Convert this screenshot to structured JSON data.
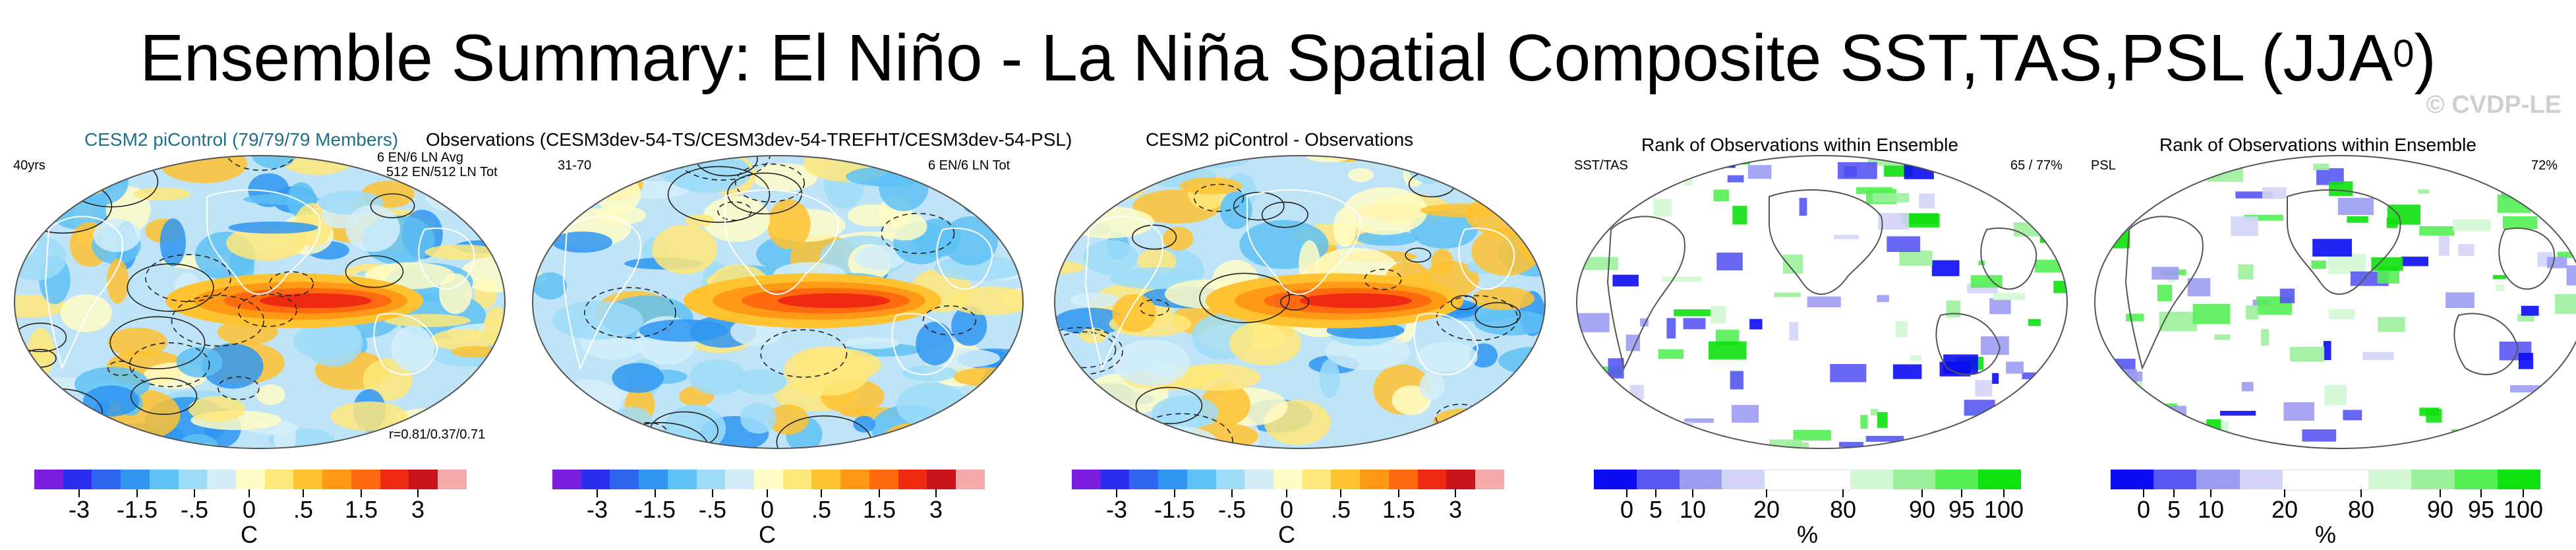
{
  "title": "Ensemble Summary: El Niño - La Niña Spatial Composite SST,TAS,PSL (JJA",
  "title_superscript": "0",
  "title_close": ")",
  "watermark": "© CVDP-LE",
  "panels": [
    {
      "top_left": "CESM2 piControl (79/79/79 Members)",
      "top_right_1": "6 EN/6 LN Avg",
      "top_right_2": "512 EN/512 LN Tot",
      "corner_left": "40yrs",
      "bottom_right": "r=0.81/0.37/0.71",
      "type": "diverging"
    },
    {
      "top_left": "Observations (CESM3dev-54-TS/CESM3dev-54-TREFHT/CESM3dev-54-PSL)",
      "corner_left": "31-70",
      "top_right_1": "6 EN/6 LN Tot",
      "type": "diverging"
    },
    {
      "top_left": "CESM2 piControl - Observations",
      "type": "diverging"
    },
    {
      "top_left": "Rank of Observations within Ensemble",
      "corner_left": "SST/TAS",
      "top_right_1": "65 / 77%",
      "type": "rank"
    },
    {
      "top_left": "Rank of Observations within Ensemble",
      "corner_left": "PSL",
      "top_right_1": "72%",
      "type": "rank"
    }
  ],
  "colorbars": {
    "diverging": {
      "colors": [
        "#7c1ee0",
        "#2d2df0",
        "#2f66ee",
        "#2f97f2",
        "#5fc1f5",
        "#9fdcf8",
        "#d4eef9",
        "#fffcc6",
        "#ffe87a",
        "#ffc230",
        "#ff9a16",
        "#ff6a10",
        "#ee2a12",
        "#c8141a",
        "#f7a8a8"
      ],
      "tick_labels": [
        "-3",
        "-1.5",
        "-.5",
        "0",
        ".5",
        "1.5",
        "3"
      ],
      "unit": "C"
    },
    "rank": {
      "colors": [
        "#0b0bf2",
        "#5757f2",
        "#9c9cf3",
        "#d4d4f8",
        "#ffffff",
        "#ffffff",
        "#d4f8d4",
        "#9cf09c",
        "#55ee55",
        "#0fe00f"
      ],
      "tick_labels": [
        "0",
        "5",
        "10",
        "20",
        "80",
        "90",
        "95",
        "100"
      ],
      "unit": "%"
    }
  }
}
